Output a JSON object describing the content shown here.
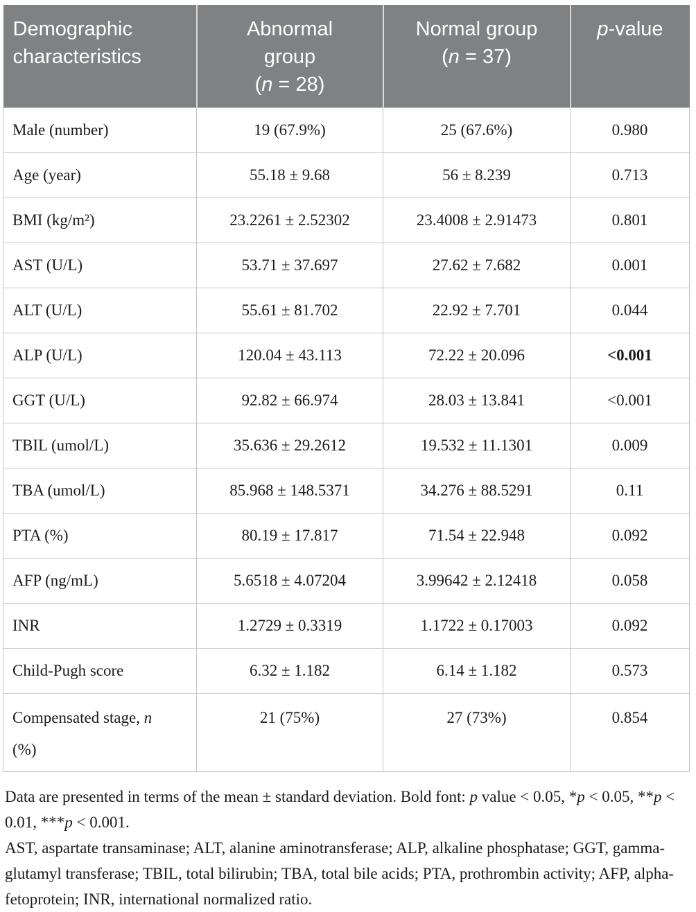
{
  "colors": {
    "header_background": "#7f8183",
    "header_text": "#ffffff",
    "body_border": "#c4c4c4",
    "body_text": "#1b1b1b"
  },
  "table": {
    "header": {
      "col1": {
        "line1": "Demographic",
        "line2": "characteristics"
      },
      "col2": {
        "line1": "Abnormal",
        "line2": "group",
        "n_open": "(",
        "n": "n",
        "n_rest": " = 28)"
      },
      "col3": {
        "line1": "Normal group",
        "n_open": "(",
        "n": "n",
        "n_rest": " = 37)"
      },
      "col4": {
        "p": "p",
        "rest": "-value"
      }
    },
    "rows": [
      {
        "label": "Male (number)",
        "abnormal": "19 (67.9%)",
        "normal": "25 (67.6%)",
        "p": "0.980",
        "p_bold": false
      },
      {
        "label": "Age (year)",
        "abnormal": "55.18 ± 9.68",
        "normal": "56 ± 8.239",
        "p": "0.713",
        "p_bold": false
      },
      {
        "label": "BMI (kg/m²)",
        "abnormal": "23.2261 ± 2.52302",
        "normal": "23.4008 ± 2.91473",
        "p": "0.801",
        "p_bold": false
      },
      {
        "label": "AST (U/L)",
        "abnormal": "53.71 ± 37.697",
        "normal": "27.62 ± 7.682",
        "p": "0.001",
        "p_bold": false
      },
      {
        "label": "ALT (U/L)",
        "abnormal": "55.61 ± 81.702",
        "normal": "22.92 ± 7.701",
        "p": "0.044",
        "p_bold": false
      },
      {
        "label": "ALP (U/L)",
        "abnormal": "120.04 ± 43.113",
        "normal": "72.22 ± 20.096",
        "p": "<0.001",
        "p_bold": true
      },
      {
        "label": "GGT (U/L)",
        "abnormal": "92.82 ± 66.974",
        "normal": "28.03 ± 13.841",
        "p": "<0.001",
        "p_bold": false
      },
      {
        "label": "TBIL (umol/L)",
        "abnormal": "35.636 ± 29.2612",
        "normal": "19.532 ± 11.1301",
        "p": "0.009",
        "p_bold": false
      },
      {
        "label": "TBA (umol/L)",
        "abnormal": "85.968 ± 148.5371",
        "normal": "34.276 ± 88.5291",
        "p": "0.11",
        "p_bold": false
      },
      {
        "label": "PTA (%)",
        "abnormal": "80.19 ± 17.817",
        "normal": "71.54 ± 22.948",
        "p": "0.092",
        "p_bold": false
      },
      {
        "label": "AFP (ng/mL)",
        "abnormal": "5.6518 ± 4.07204",
        "normal": "3.99642 ± 2.12418",
        "p": "0.058",
        "p_bold": false
      },
      {
        "label": "INR",
        "abnormal": "1.2729 ± 0.3319",
        "normal": "1.1722 ± 0.17003",
        "p": "0.092",
        "p_bold": false
      },
      {
        "label": "Child-Pugh score",
        "abnormal": "6.32 ± 1.182",
        "normal": "6.14 ± 1.182",
        "p": "0.573",
        "p_bold": false
      }
    ],
    "last_row": {
      "label_pre": "Compensated stage, ",
      "label_n": "n",
      "label_post": "(%)",
      "abnormal": "21 (75%)",
      "normal": "27 (73%)",
      "p": "0.854",
      "p_bold": false
    }
  },
  "footnotes": {
    "fn1_a": "Data are presented in terms of the mean ± standard deviation. Bold font: ",
    "fn1_p1": "p",
    "fn1_b": " value < 0.05, *",
    "fn1_p2": "p",
    "fn1_c": " < 0.05, **",
    "fn1_p3": "p",
    "fn1_d": " < 0.01, ***",
    "fn1_p4": "p",
    "fn1_e": " < 0.001.",
    "fn2": "AST, aspartate transaminase; ALT, alanine aminotransferase; ALP, alkaline phosphatase; GGT, gamma-glutamyl transferase; TBIL, total bilirubin; TBA, total bile acids; PTA, prothrombin activity; AFP, alpha-fetoprotein; INR, international normalized ratio."
  }
}
